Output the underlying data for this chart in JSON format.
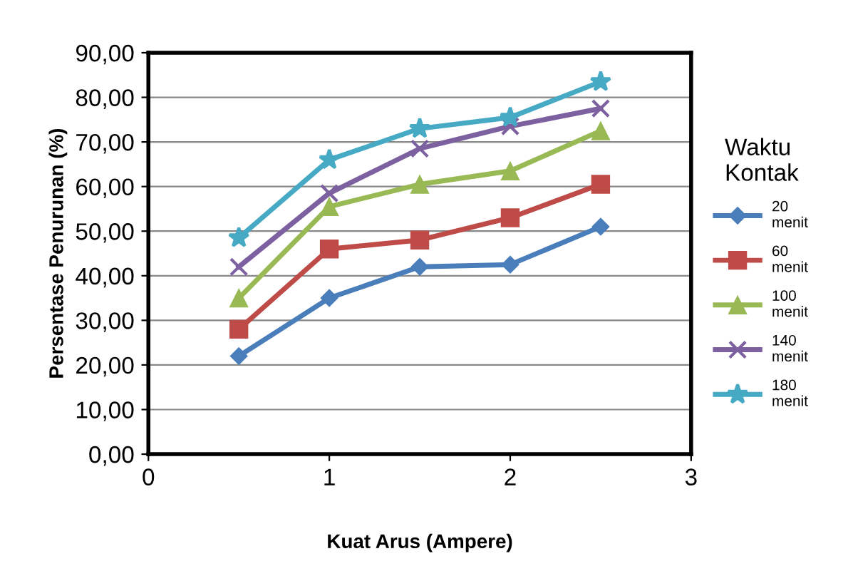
{
  "chart_data": {
    "type": "line",
    "xlabel": "Kuat Arus (Ampere)",
    "ylabel": "Persentase Penurunan (%)",
    "legend_title": "Waktu\nKontak",
    "x": [
      0.5,
      1,
      1.5,
      2,
      2.5
    ],
    "series": [
      {
        "name": "20\nmenit",
        "color": "#4a7ebb",
        "marker": "diamond",
        "values": [
          22,
          35,
          42,
          42.5,
          51
        ]
      },
      {
        "name": "60\nmenit",
        "color": "#be4b48",
        "marker": "square",
        "values": [
          28,
          46,
          48,
          53,
          60.5
        ]
      },
      {
        "name": "100\nmenit",
        "color": "#98b954",
        "marker": "triangle",
        "values": [
          35,
          55.5,
          60.5,
          63.5,
          72.5
        ]
      },
      {
        "name": "140\nmenit",
        "color": "#7d60a0",
        "marker": "cross",
        "values": [
          42,
          58.5,
          68.5,
          73.5,
          77.5
        ]
      },
      {
        "name": "180\nmenit",
        "color": "#46aac5",
        "marker": "star",
        "values": [
          48.5,
          66,
          73,
          75.5,
          83.5
        ]
      }
    ],
    "xlim": [
      0,
      3
    ],
    "xticks": [
      0,
      1,
      2,
      3
    ],
    "ylim": [
      0,
      90
    ],
    "yticks": [
      {
        "value": 0,
        "label": "0,00"
      },
      {
        "value": 10,
        "label": "10,00"
      },
      {
        "value": 20,
        "label": "20,00"
      },
      {
        "value": 30,
        "label": "30,00"
      },
      {
        "value": 40,
        "label": "40,00"
      },
      {
        "value": 50,
        "label": "50,00"
      },
      {
        "value": 60,
        "label": "60,00"
      },
      {
        "value": 70,
        "label": "70,00"
      },
      {
        "value": 80,
        "label": "80,00"
      },
      {
        "value": 90,
        "label": "90,00"
      }
    ],
    "grid": "y",
    "legend": "right",
    "line_style": "solid"
  }
}
